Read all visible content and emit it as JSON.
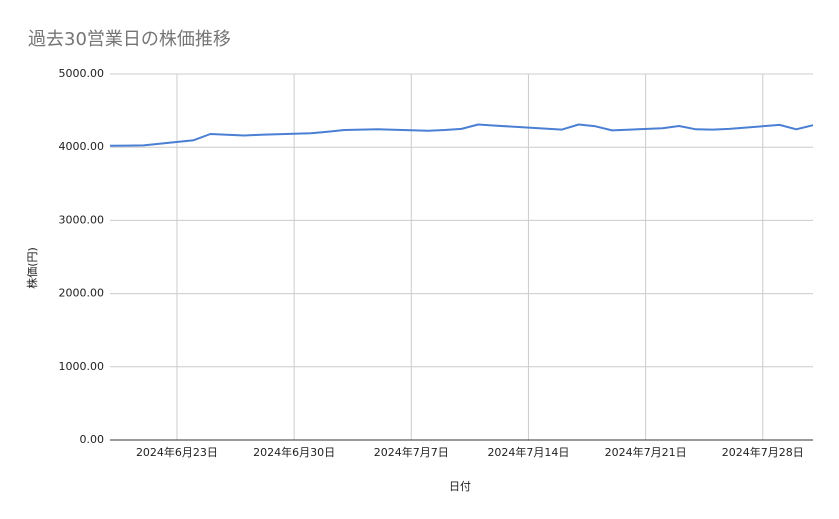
{
  "chart_data": {
    "type": "line",
    "title": "過去30営業日の株価推移",
    "x_label": "日付",
    "y_label": "株価(円)",
    "x": [
      "2024-06-19",
      "2024-06-20",
      "2024-06-21",
      "2024-06-24",
      "2024-06-25",
      "2024-06-26",
      "2024-06-27",
      "2024-06-28",
      "2024-07-01",
      "2024-07-02",
      "2024-07-03",
      "2024-07-04",
      "2024-07-05",
      "2024-07-08",
      "2024-07-09",
      "2024-07-10",
      "2024-07-11",
      "2024-07-12",
      "2024-07-16",
      "2024-07-17",
      "2024-07-18",
      "2024-07-19",
      "2024-07-22",
      "2024-07-23",
      "2024-07-24",
      "2024-07-25",
      "2024-07-26",
      "2024-07-29",
      "2024-07-30",
      "2024-07-31"
    ],
    "series": [
      {
        "name": "株価",
        "color": "#4a7fd4",
        "values": [
          4020,
          4022,
          4025,
          4095,
          4180,
          4170,
          4160,
          4170,
          4190,
          4210,
          4235,
          4240,
          4245,
          4225,
          4235,
          4250,
          4310,
          4295,
          4240,
          4310,
          4285,
          4230,
          4260,
          4290,
          4245,
          4240,
          4250,
          4305,
          4245,
          4300
        ]
      }
    ],
    "xlim": [
      "2024-06-19",
      "2024-07-31"
    ],
    "xticks": [
      {
        "value": "2024-06-23",
        "label": "2024年6月23日"
      },
      {
        "value": "2024-06-30",
        "label": "2024年6月30日"
      },
      {
        "value": "2024-07-07",
        "label": "2024年7月7日"
      },
      {
        "value": "2024-07-14",
        "label": "2024年7月14日"
      },
      {
        "value": "2024-07-21",
        "label": "2024年7月21日"
      },
      {
        "value": "2024-07-28",
        "label": "2024年7月28日"
      }
    ],
    "ylim": [
      0,
      5000
    ],
    "yticks": [
      {
        "value": 0,
        "label": "0.00"
      },
      {
        "value": 1000,
        "label": "1000.00"
      },
      {
        "value": 2000,
        "label": "2000.00"
      },
      {
        "value": 3000,
        "label": "3000.00"
      },
      {
        "value": 4000,
        "label": "4000.00"
      },
      {
        "value": 5000,
        "label": "5000.00"
      }
    ],
    "grid": true
  }
}
